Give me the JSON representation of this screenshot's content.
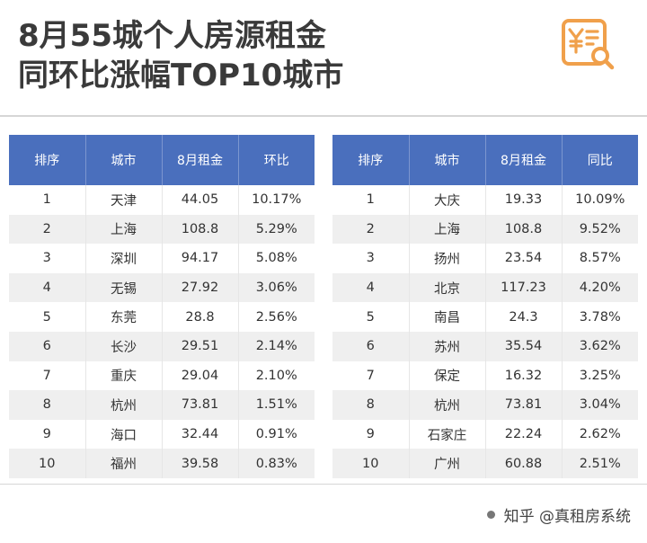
{
  "header": {
    "title_line1": "8月55城个人房源租金",
    "title_line2": "同环比涨幅TOP10城市"
  },
  "logo": {
    "icon": "yen-document-search-icon",
    "color": "#f0a04b"
  },
  "left_table": {
    "columns": [
      "排序",
      "城市",
      "8月租金",
      "环比"
    ],
    "rows": [
      [
        "1",
        "天津",
        "44.05",
        "10.17%"
      ],
      [
        "2",
        "上海",
        "108.8",
        "5.29%"
      ],
      [
        "3",
        "深圳",
        "94.17",
        "5.08%"
      ],
      [
        "4",
        "无锡",
        "27.92",
        "3.06%"
      ],
      [
        "5",
        "东莞",
        "28.8",
        "2.56%"
      ],
      [
        "6",
        "长沙",
        "29.51",
        "2.14%"
      ],
      [
        "7",
        "重庆",
        "29.04",
        "2.10%"
      ],
      [
        "8",
        "杭州",
        "73.81",
        "1.51%"
      ],
      [
        "9",
        "海口",
        "32.44",
        "0.91%"
      ],
      [
        "10",
        "福州",
        "39.58",
        "0.83%"
      ]
    ]
  },
  "right_table": {
    "columns": [
      "排序",
      "城市",
      "8月租金",
      "同比"
    ],
    "rows": [
      [
        "1",
        "大庆",
        "19.33",
        "10.09%"
      ],
      [
        "2",
        "上海",
        "108.8",
        "9.52%"
      ],
      [
        "3",
        "扬州",
        "23.54",
        "8.57%"
      ],
      [
        "4",
        "北京",
        "117.23",
        "4.20%"
      ],
      [
        "5",
        "南昌",
        "24.3",
        "3.78%"
      ],
      [
        "6",
        "苏州",
        "35.54",
        "3.62%"
      ],
      [
        "7",
        "保定",
        "16.32",
        "3.25%"
      ],
      [
        "8",
        "杭州",
        "73.81",
        "3.04%"
      ],
      [
        "9",
        "石家庄",
        "22.24",
        "2.62%"
      ],
      [
        "10",
        "广州",
        "60.88",
        "2.51%"
      ]
    ]
  },
  "footer": {
    "credit": "知乎 @真租房系统"
  },
  "colors": {
    "header_bg": "#4a6fbd",
    "stripe": "#efefef",
    "title": "#3a3a3a"
  }
}
